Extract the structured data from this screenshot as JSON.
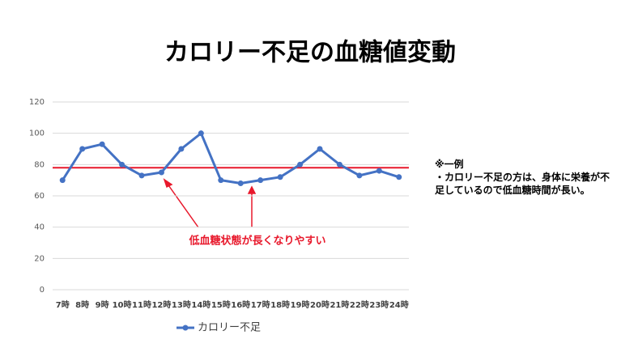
{
  "chart_data": {
    "type": "line",
    "title": "カロリー不足の血糖値変動",
    "categories": [
      "7時",
      "8時",
      "9時",
      "10時",
      "11時",
      "12時",
      "13時",
      "14時",
      "15時",
      "16時",
      "17時",
      "18時",
      "19時",
      "20時",
      "21時",
      "22時",
      "23時",
      "24時"
    ],
    "series": [
      {
        "name": "カロリー不足",
        "color": "#4472c4",
        "values": [
          70,
          90,
          93,
          80,
          73,
          75,
          90,
          100,
          70,
          68,
          70,
          72,
          80,
          90,
          80,
          73,
          76,
          72
        ]
      }
    ],
    "ylim": [
      0,
      120
    ],
    "yticks": [
      0,
      20,
      40,
      60,
      80,
      100,
      120
    ],
    "grid": true,
    "reference_line": {
      "value": 78,
      "color": "#e8192c"
    },
    "annotation": "低血糖状態が長くなりやすい",
    "note": {
      "heading": "※一例",
      "text": "・カロリー不足の方は、身体に栄養が不足しているので低血糖時間が長い。"
    },
    "legend": "bottom"
  }
}
